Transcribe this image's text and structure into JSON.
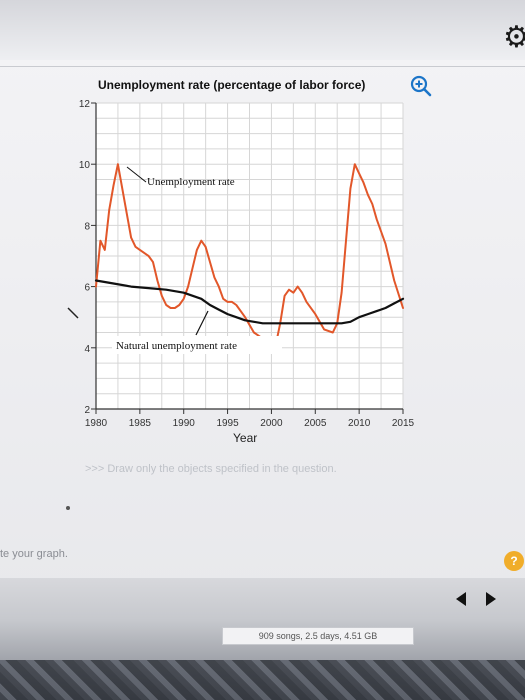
{
  "page": {
    "instruction": ">>> Draw only the objects specified in the question.",
    "graph_hint": "te your graph.",
    "help_label": "?",
    "device_status": "909 songs, 2.5 days, 4.51 GB",
    "icons": {
      "settings": "gear-icon",
      "zoom": "zoom-in-icon",
      "help": "help-icon",
      "previous": "arrow-left-icon",
      "next": "arrow-right-icon"
    }
  },
  "chart_data": {
    "type": "line",
    "title": "Unemployment rate (percentage of labor force)",
    "xlabel": "Year",
    "ylabel": "",
    "xlim": [
      1980,
      2015
    ],
    "ylim": [
      2,
      12
    ],
    "x_ticks": [
      1980,
      1985,
      1990,
      1995,
      2000,
      2005,
      2010,
      2015
    ],
    "y_ticks": [
      2,
      4,
      6,
      8,
      10,
      12
    ],
    "grid": true,
    "legend": "none",
    "series": [
      {
        "name": "Unemployment rate",
        "color": "#e2572a",
        "x": [
          1980,
          1980.5,
          1981,
          1981.5,
          1982,
          1982.5,
          1983,
          1983.5,
          1984,
          1984.5,
          1985,
          1986,
          1986.5,
          1987,
          1987.5,
          1988,
          1988.5,
          1989,
          1989.5,
          1990,
          1990.5,
          1991,
          1991.5,
          1992,
          1992.5,
          1993,
          1993.5,
          1994,
          1994.5,
          1995,
          1995.5,
          1996,
          1997,
          1998,
          1999,
          2000,
          2000.5,
          2001,
          2001.5,
          2002,
          2002.5,
          2003,
          2003.5,
          2004,
          2005,
          2006,
          2007,
          2007.5,
          2008,
          2008.5,
          2009,
          2009.5,
          2010,
          2010.5,
          2011,
          2011.5,
          2012,
          2013,
          2014,
          2015
        ],
        "y": [
          6.0,
          7.5,
          7.2,
          8.5,
          9.3,
          10.0,
          9.2,
          8.4,
          7.6,
          7.3,
          7.2,
          7.0,
          6.8,
          6.2,
          5.7,
          5.4,
          5.3,
          5.3,
          5.4,
          5.6,
          6.0,
          6.6,
          7.2,
          7.5,
          7.3,
          6.8,
          6.3,
          6.0,
          5.6,
          5.5,
          5.5,
          5.4,
          5.0,
          4.5,
          4.3,
          4.0,
          4.1,
          4.8,
          5.7,
          5.9,
          5.8,
          6.0,
          5.8,
          5.5,
          5.1,
          4.6,
          4.5,
          4.8,
          5.8,
          7.5,
          9.2,
          10.0,
          9.7,
          9.4,
          9.0,
          8.7,
          8.2,
          7.4,
          6.2,
          5.3
        ]
      },
      {
        "name": "Natural unemployment rate",
        "color": "#111111",
        "x": [
          1980,
          1982,
          1984,
          1986,
          1988,
          1990,
          1992,
          1993,
          1994,
          1995,
          1996,
          1997,
          1998,
          1999,
          2000,
          2002,
          2004,
          2006,
          2008,
          2009,
          2010,
          2011,
          2012,
          2013,
          2014,
          2015
        ],
        "y": [
          6.2,
          6.1,
          6.0,
          5.95,
          5.9,
          5.8,
          5.6,
          5.4,
          5.25,
          5.1,
          5.0,
          4.9,
          4.85,
          4.8,
          4.8,
          4.8,
          4.8,
          4.8,
          4.8,
          4.85,
          5.0,
          5.1,
          5.2,
          5.3,
          5.45,
          5.6
        ]
      }
    ],
    "annotations": [
      "Unemployment rate",
      "Natural unemployment rate"
    ]
  }
}
